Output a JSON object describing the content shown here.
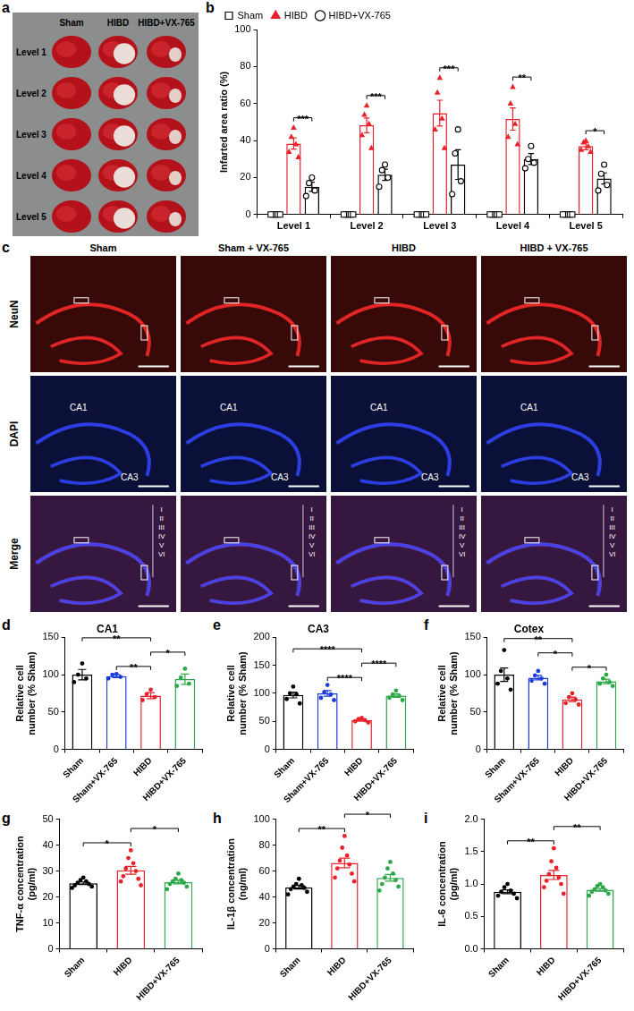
{
  "panel_a": {
    "label": "a",
    "columns": [
      "Sham",
      "HIBD",
      "HIBD+VX-765"
    ],
    "rows": [
      "Level 1",
      "Level 2",
      "Level 3",
      "Level 4",
      "Level 5"
    ]
  },
  "panel_c": {
    "label": "c",
    "columns": [
      "Sham",
      "Sham + VX-765",
      "HIBD",
      "HIBD + VX-765"
    ],
    "rows": [
      "NeuN",
      "DAPI",
      "Merge"
    ],
    "regions": [
      "CA1",
      "CA3"
    ],
    "layers": [
      "I",
      "II",
      "III",
      "IV",
      "V",
      "VI"
    ]
  },
  "chart_data": [
    {
      "panel": "b",
      "type": "bar",
      "y_label": "Infarted area ratio (%)",
      "categories": [
        "Level 1",
        "Level 2",
        "Level 3",
        "Level 4",
        "Level 5"
      ],
      "series": [
        {
          "name": "Sham",
          "color": "#000000",
          "marker": "open_square",
          "values": [
            0,
            0,
            0,
            0,
            0
          ],
          "errors": [
            0,
            0,
            0,
            0,
            0
          ],
          "points": [
            [
              0,
              0,
              0,
              0,
              0
            ],
            [
              0,
              0,
              0,
              0,
              0
            ],
            [
              0,
              0,
              0,
              0,
              0
            ],
            [
              0,
              0,
              0,
              0,
              0
            ],
            [
              0,
              0,
              0,
              0,
              0
            ]
          ]
        },
        {
          "name": "HIBD",
          "color": "#e8212a",
          "marker": "triangle",
          "values": [
            38.4,
            48.2,
            54.8,
            51.6,
            37
          ],
          "errors": [
            3,
            4,
            7,
            6,
            2
          ],
          "points": [
            [
              47,
              42,
              38,
              34,
              31
            ],
            [
              59,
              54,
              49,
              43,
              36
            ],
            [
              74,
              66,
              52,
              46,
              36
            ],
            [
              69,
              60,
              49,
              42,
              38
            ],
            [
              40,
              39,
              37,
              35,
              34
            ]
          ]
        },
        {
          "name": "HIBD+VX-765",
          "color": "#000000",
          "marker": "open_circle",
          "values": [
            15,
            21.5,
            27,
            30,
            19.5
          ],
          "errors": [
            2.5,
            3,
            8,
            3,
            3
          ],
          "points": [
            [
              20,
              17,
              13,
              10
            ],
            [
              27,
              24,
              20,
              15
            ],
            [
              46,
              33,
              18,
              11
            ],
            [
              37,
              30,
              28,
              25
            ],
            [
              27,
              22,
              16,
              13
            ]
          ]
        }
      ],
      "ylim": [
        0,
        100
      ],
      "yticks": [
        0,
        20,
        40,
        60,
        80,
        100
      ],
      "grid": false,
      "legend": "top",
      "significance": [
        {
          "category": "Level 1",
          "series": [
            "HIBD",
            "HIBD+VX-765"
          ],
          "label": "***"
        },
        {
          "category": "Level 2",
          "series": [
            "HIBD",
            "HIBD+VX-765"
          ],
          "label": "***"
        },
        {
          "category": "Level 3",
          "series": [
            "HIBD",
            "HIBD+VX-765"
          ],
          "label": "***"
        },
        {
          "category": "Level 4",
          "series": [
            "HIBD",
            "HIBD+VX-765"
          ],
          "label": "**"
        },
        {
          "category": "Level 5",
          "series": [
            "HIBD",
            "HIBD+VX-765"
          ],
          "label": "*"
        }
      ]
    },
    {
      "panel": "d",
      "type": "bar",
      "title": "CA1",
      "y_label": "Relative cell number (% Sham)",
      "categories": [
        "Sham",
        "Sham+VX-765",
        "HIBD",
        "HIBD+VX-765"
      ],
      "values": [
        100,
        98,
        72,
        94
      ],
      "errors": [
        7,
        2,
        4,
        7
      ],
      "points": [
        [
          115,
          100,
          95,
          90
        ],
        [
          101,
          100,
          97,
          95
        ],
        [
          80,
          74,
          70,
          66
        ],
        [
          108,
          96,
          88,
          85
        ]
      ],
      "colors": [
        "#000000",
        "#1e3cdc",
        "#e8212a",
        "#2ca84a"
      ],
      "marker": "circle",
      "ylim": [
        0,
        150
      ],
      "yticks": [
        0,
        50,
        100,
        150
      ],
      "grid": false,
      "significance": [
        {
          "between": [
            "Sham",
            "HIBD"
          ],
          "label": "**"
        },
        {
          "between": [
            "Sham+VX-765",
            "HIBD"
          ],
          "label": "**"
        },
        {
          "between": [
            "HIBD",
            "HIBD+VX-765"
          ],
          "label": "*"
        }
      ]
    },
    {
      "panel": "e",
      "type": "bar",
      "title": "CA3",
      "y_label": "Relative cell number (% Sham)",
      "categories": [
        "Sham",
        "Sham+VX-765",
        "HIBD",
        "HIBD+VX-765"
      ],
      "values": [
        97,
        100,
        52,
        96
      ],
      "errors": [
        5,
        5,
        1.5,
        3
      ],
      "points": [
        [
          112,
          100,
          98,
          90,
          82
        ],
        [
          115,
          102,
          98,
          92,
          88
        ],
        [
          56,
          54,
          52,
          50,
          48
        ],
        [
          105,
          98,
          95,
          92,
          88
        ]
      ],
      "colors": [
        "#000000",
        "#1e3cdc",
        "#e8212a",
        "#2ca84a"
      ],
      "marker": "circle",
      "ylim": [
        0,
        200
      ],
      "yticks": [
        0,
        50,
        100,
        150,
        200
      ],
      "grid": false,
      "significance": [
        {
          "between": [
            "Sham",
            "HIBD"
          ],
          "label": "****"
        },
        {
          "between": [
            "Sham+VX-765",
            "HIBD"
          ],
          "label": "****"
        },
        {
          "between": [
            "HIBD",
            "HIBD+VX-765"
          ],
          "label": "****"
        }
      ]
    },
    {
      "panel": "f",
      "type": "bar",
      "title": "Cotex",
      "y_label": "Relative cell number (% Sham)",
      "categories": [
        "Sham",
        "Sham+VX-765",
        "HIBD",
        "HIBD+VX-765"
      ],
      "values": [
        100,
        96,
        67,
        91
      ],
      "errors": [
        9,
        3,
        3,
        3
      ],
      "points": [
        [
          133,
          105,
          95,
          88,
          80
        ],
        [
          105,
          99,
          95,
          92,
          88
        ],
        [
          75,
          70,
          67,
          62,
          60
        ],
        [
          100,
          95,
          90,
          88,
          85
        ]
      ],
      "colors": [
        "#000000",
        "#1e3cdc",
        "#e8212a",
        "#2ca84a"
      ],
      "marker": "circle",
      "ylim": [
        0,
        150
      ],
      "yticks": [
        0,
        50,
        100,
        150
      ],
      "grid": false,
      "significance": [
        {
          "between": [
            "Sham",
            "HIBD"
          ],
          "label": "**"
        },
        {
          "between": [
            "Sham+VX-765",
            "HIBD"
          ],
          "label": "*"
        },
        {
          "between": [
            "HIBD",
            "HIBD+VX-765"
          ],
          "label": "*"
        }
      ]
    },
    {
      "panel": "g",
      "type": "bar",
      "y_label": "TNF-α concentration (pg/ml)",
      "categories": [
        "Sham",
        "HIBD",
        "HIBD+VX-765"
      ],
      "values": [
        25.3,
        30.3,
        25.75
      ],
      "errors": [
        0.5,
        1.5,
        0.7
      ],
      "points": [
        [
          27.5,
          26.5,
          26,
          25.5,
          25,
          24.5,
          24,
          23.5
        ],
        [
          38,
          35,
          33,
          31,
          30,
          28,
          27,
          26,
          24.5
        ],
        [
          29,
          27,
          26.5,
          26,
          25.5,
          25,
          24,
          23
        ]
      ],
      "colors": [
        "#000000",
        "#e8212a",
        "#2ca84a"
      ],
      "marker": "circle",
      "ylim": [
        0,
        50
      ],
      "yticks": [
        0,
        10,
        20,
        30,
        40,
        50
      ],
      "grid": false,
      "significance": [
        {
          "between": [
            "Sham",
            "HIBD"
          ],
          "label": "*"
        },
        {
          "between": [
            "HIBD",
            "HIBD+VX-765"
          ],
          "label": "*"
        }
      ]
    },
    {
      "panel": "h",
      "type": "bar",
      "y_label": "IL-1β concentration (ng/ml)",
      "categories": [
        "Sham",
        "HIBD",
        "HIBD+VX-765"
      ],
      "values": [
        47.5,
        66.3,
        54.75
      ],
      "errors": [
        1.4,
        3.7,
        2.6
      ],
      "points": [
        [
          54,
          50,
          49,
          48,
          47,
          46,
          44,
          42
        ],
        [
          87,
          78,
          72,
          68,
          65,
          62,
          58,
          55,
          52
        ],
        [
          67,
          62,
          58,
          55,
          53,
          50,
          48,
          45
        ]
      ],
      "colors": [
        "#000000",
        "#e8212a",
        "#2ca84a"
      ],
      "marker": "circle",
      "ylim": [
        0,
        100
      ],
      "yticks": [
        0,
        20,
        40,
        60,
        80,
        100
      ],
      "grid": false,
      "significance": [
        {
          "between": [
            "Sham",
            "HIBD"
          ],
          "label": "**"
        },
        {
          "between": [
            "HIBD",
            "HIBD+VX-765"
          ],
          "label": "*"
        }
      ]
    },
    {
      "panel": "i",
      "type": "bar",
      "y_label": "IL-6 concentration (pg/ml)",
      "categories": [
        "Sham",
        "HIBD",
        "HIBD+VX-765"
      ],
      "values": [
        0.88,
        1.14,
        0.91
      ],
      "errors": [
        0.03,
        0.07,
        0.02
      ],
      "points": [
        [
          1.0,
          0.95,
          0.9,
          0.88,
          0.85,
          0.82,
          0.78
        ],
        [
          1.55,
          1.35,
          1.25,
          1.15,
          1.1,
          1.05,
          1.0,
          0.95,
          0.85
        ],
        [
          1.0,
          0.97,
          0.95,
          0.92,
          0.9,
          0.88,
          0.85,
          0.82
        ]
      ],
      "colors": [
        "#000000",
        "#e8212a",
        "#2ca84a"
      ],
      "marker": "circle",
      "ylim": [
        0,
        2
      ],
      "yticks": [
        {
          "value": 0,
          "label": "0.0"
        },
        0.5,
        {
          "value": 1,
          "label": "1.0"
        },
        1.5,
        {
          "value": 2,
          "label": "2.0"
        }
      ],
      "grid": false,
      "significance": [
        {
          "between": [
            "Sham",
            "HIBD"
          ],
          "label": "**"
        },
        {
          "between": [
            "HIBD",
            "HIBD+VX-765"
          ],
          "label": "**"
        }
      ]
    }
  ]
}
